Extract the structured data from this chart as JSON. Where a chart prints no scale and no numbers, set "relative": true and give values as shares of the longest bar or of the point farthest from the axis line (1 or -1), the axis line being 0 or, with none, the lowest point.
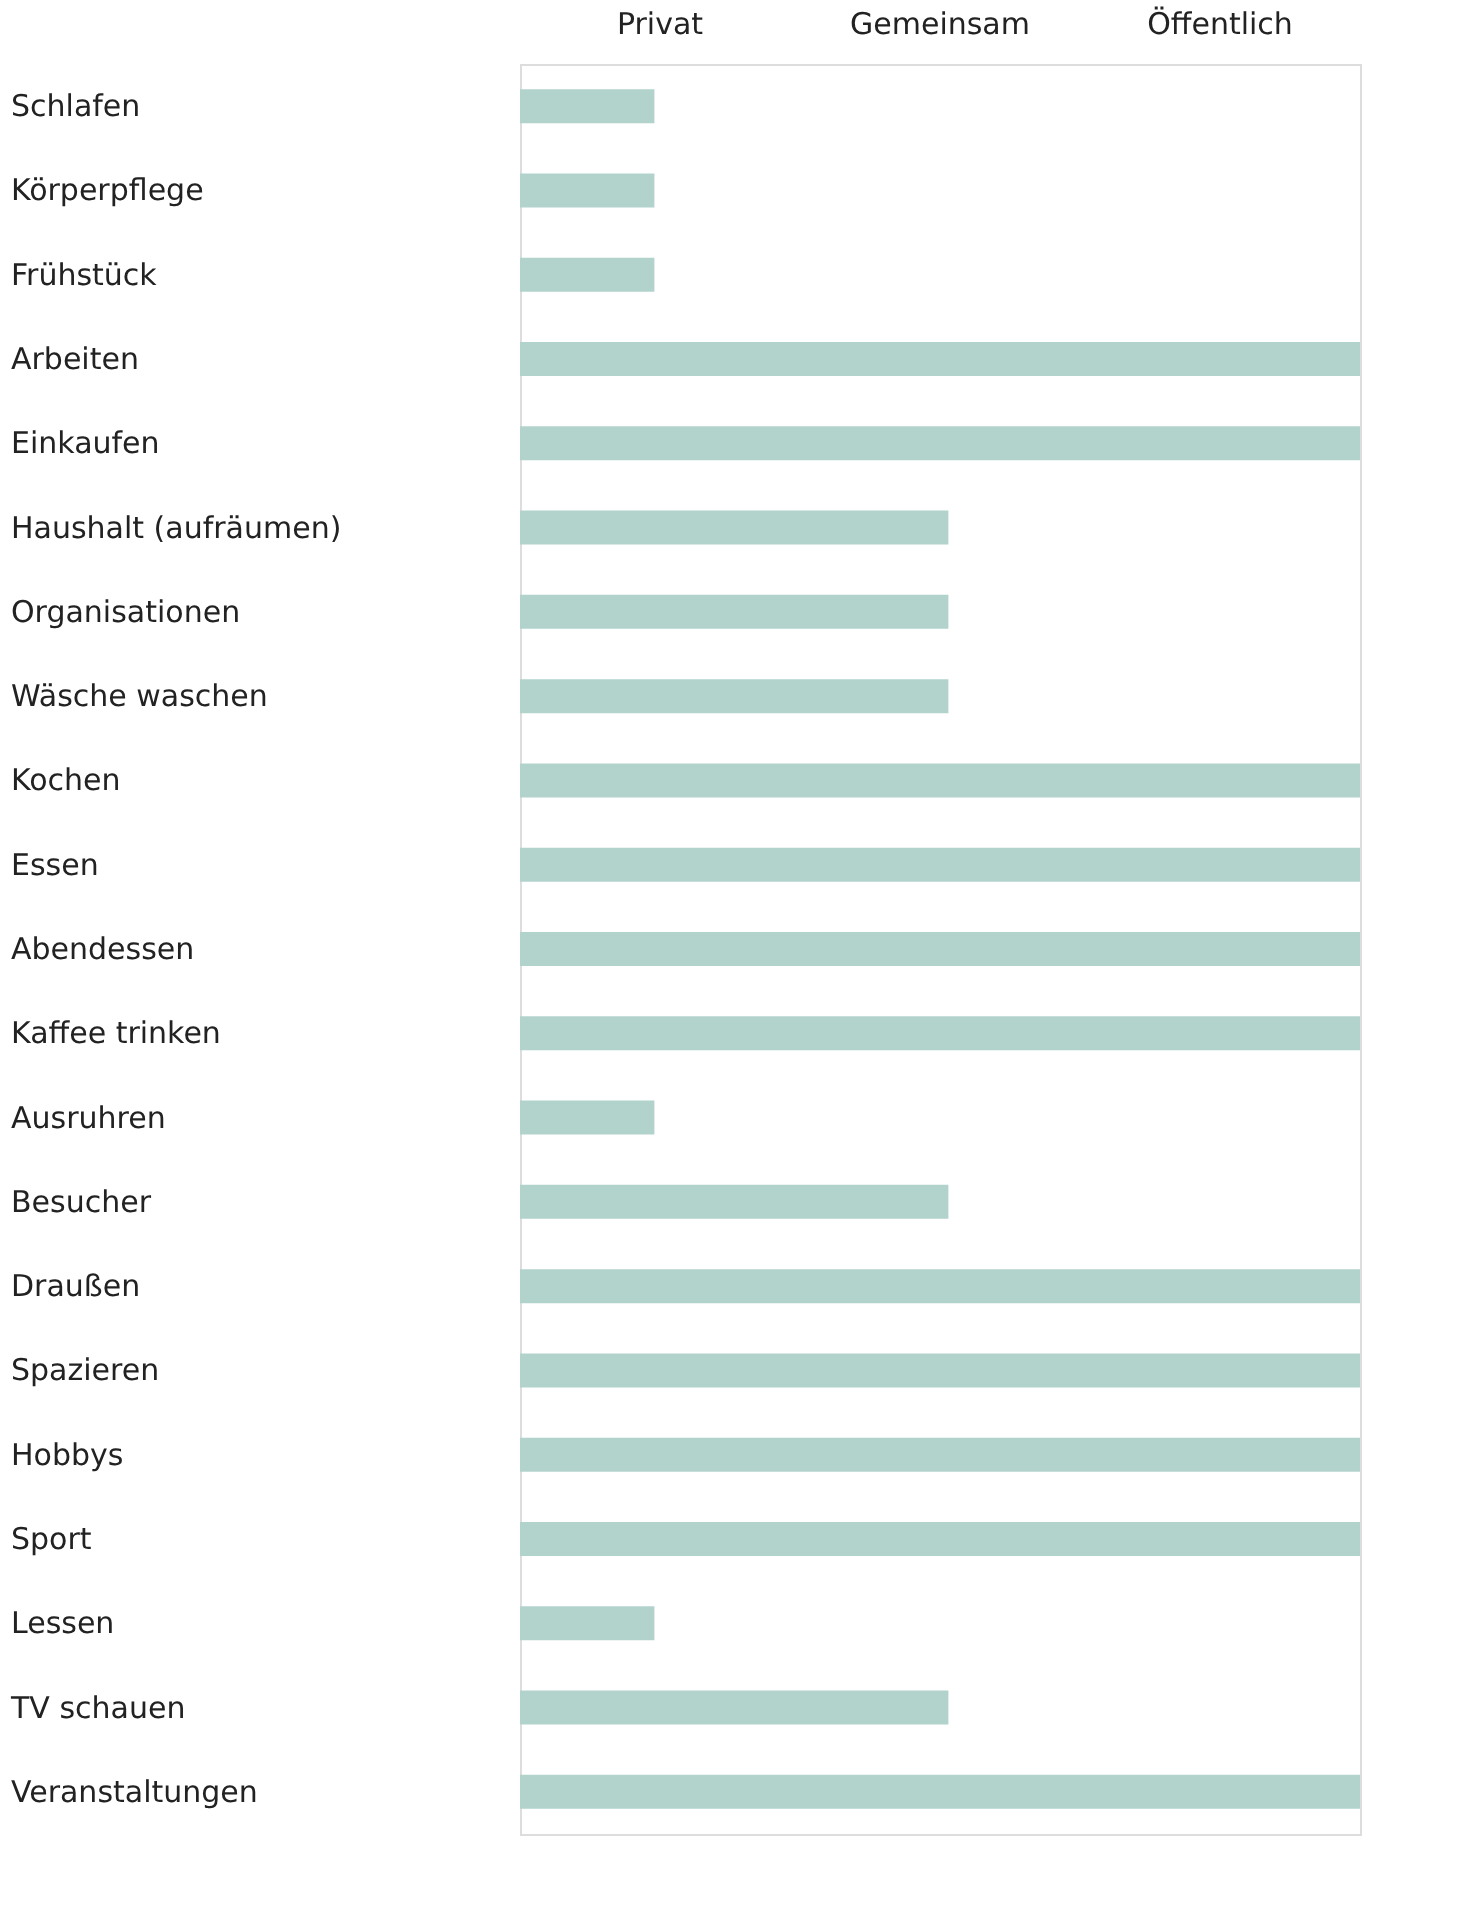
{
  "chart_data": {
    "type": "bar",
    "orientation": "horizontal",
    "relative": true,
    "categories": [
      "Schlafen",
      "Körperpflege",
      "Frühstück",
      "Arbeiten",
      "Einkaufen",
      "Haushalt (aufräumen)",
      "Organisationen",
      "Wäsche waschen",
      "Kochen",
      "Essen",
      "Abendessen",
      "Kaffee trinken",
      "Ausruhren",
      "Besucher",
      "Draußen",
      "Spazieren",
      "Hobbys",
      "Sport",
      "Lessen",
      "TV schauen",
      "Veranstaltungen"
    ],
    "values": [
      0.16,
      0.16,
      0.16,
      1,
      1,
      0.51,
      0.51,
      0.51,
      1,
      1,
      1,
      1,
      0.16,
      0.51,
      1,
      1,
      1,
      1,
      0.16,
      0.51,
      1
    ],
    "color": "#b2d3cc",
    "annotations": [
      "Privat",
      "Gemeinsam",
      "Öffentlich"
    ],
    "grid": false
  }
}
